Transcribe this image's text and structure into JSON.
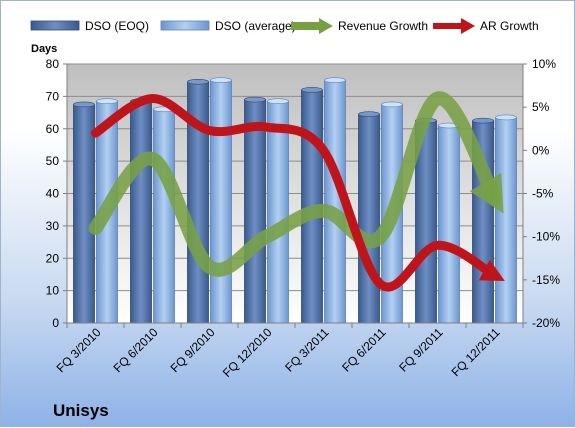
{
  "chart_data": {
    "type": "bar",
    "title": "",
    "company": "Unisys",
    "ylabel": "Days",
    "categories": [
      "FQ 3/2010",
      "FQ 6/2010",
      "FQ 9/2010",
      "FQ 12/2010",
      "FQ 3/2011",
      "FQ 6/2011",
      "FQ 9/2011",
      "FQ 12/2011"
    ],
    "ylim": [
      0,
      80
    ],
    "yticks": [
      "0",
      "10",
      "20",
      "30",
      "40",
      "50",
      "60",
      "70",
      "80"
    ],
    "y2lim": [
      -20,
      10
    ],
    "y2ticks": [
      "-20%",
      "-15%",
      "-10%",
      "-5%",
      "0%",
      "5%",
      "10%"
    ],
    "grid": true,
    "legend_position": "top",
    "series": [
      {
        "name": "DSO (EOQ)",
        "type": "bar",
        "axis": "left",
        "color": "#4f71a6",
        "values": [
          67.5,
          68.5,
          74.5,
          69,
          72,
          64.5,
          62.5,
          62.5
        ]
      },
      {
        "name": "DSO (average)",
        "type": "bar",
        "axis": "left",
        "color": "#8fb4e3",
        "values": [
          68.5,
          66,
          75,
          68.5,
          75,
          67.5,
          61,
          63.5
        ]
      },
      {
        "name": "Revenue Growth",
        "type": "line",
        "axis": "right",
        "color": "#77a045",
        "values": [
          -9,
          -1,
          -13.5,
          -10,
          -7,
          -10,
          6,
          -5.5
        ]
      },
      {
        "name": "AR Growth",
        "type": "line",
        "axis": "right",
        "color": "#c0141b",
        "values": [
          2,
          6,
          2.3,
          2.7,
          0,
          -15.5,
          -11,
          -14.5
        ]
      }
    ]
  }
}
